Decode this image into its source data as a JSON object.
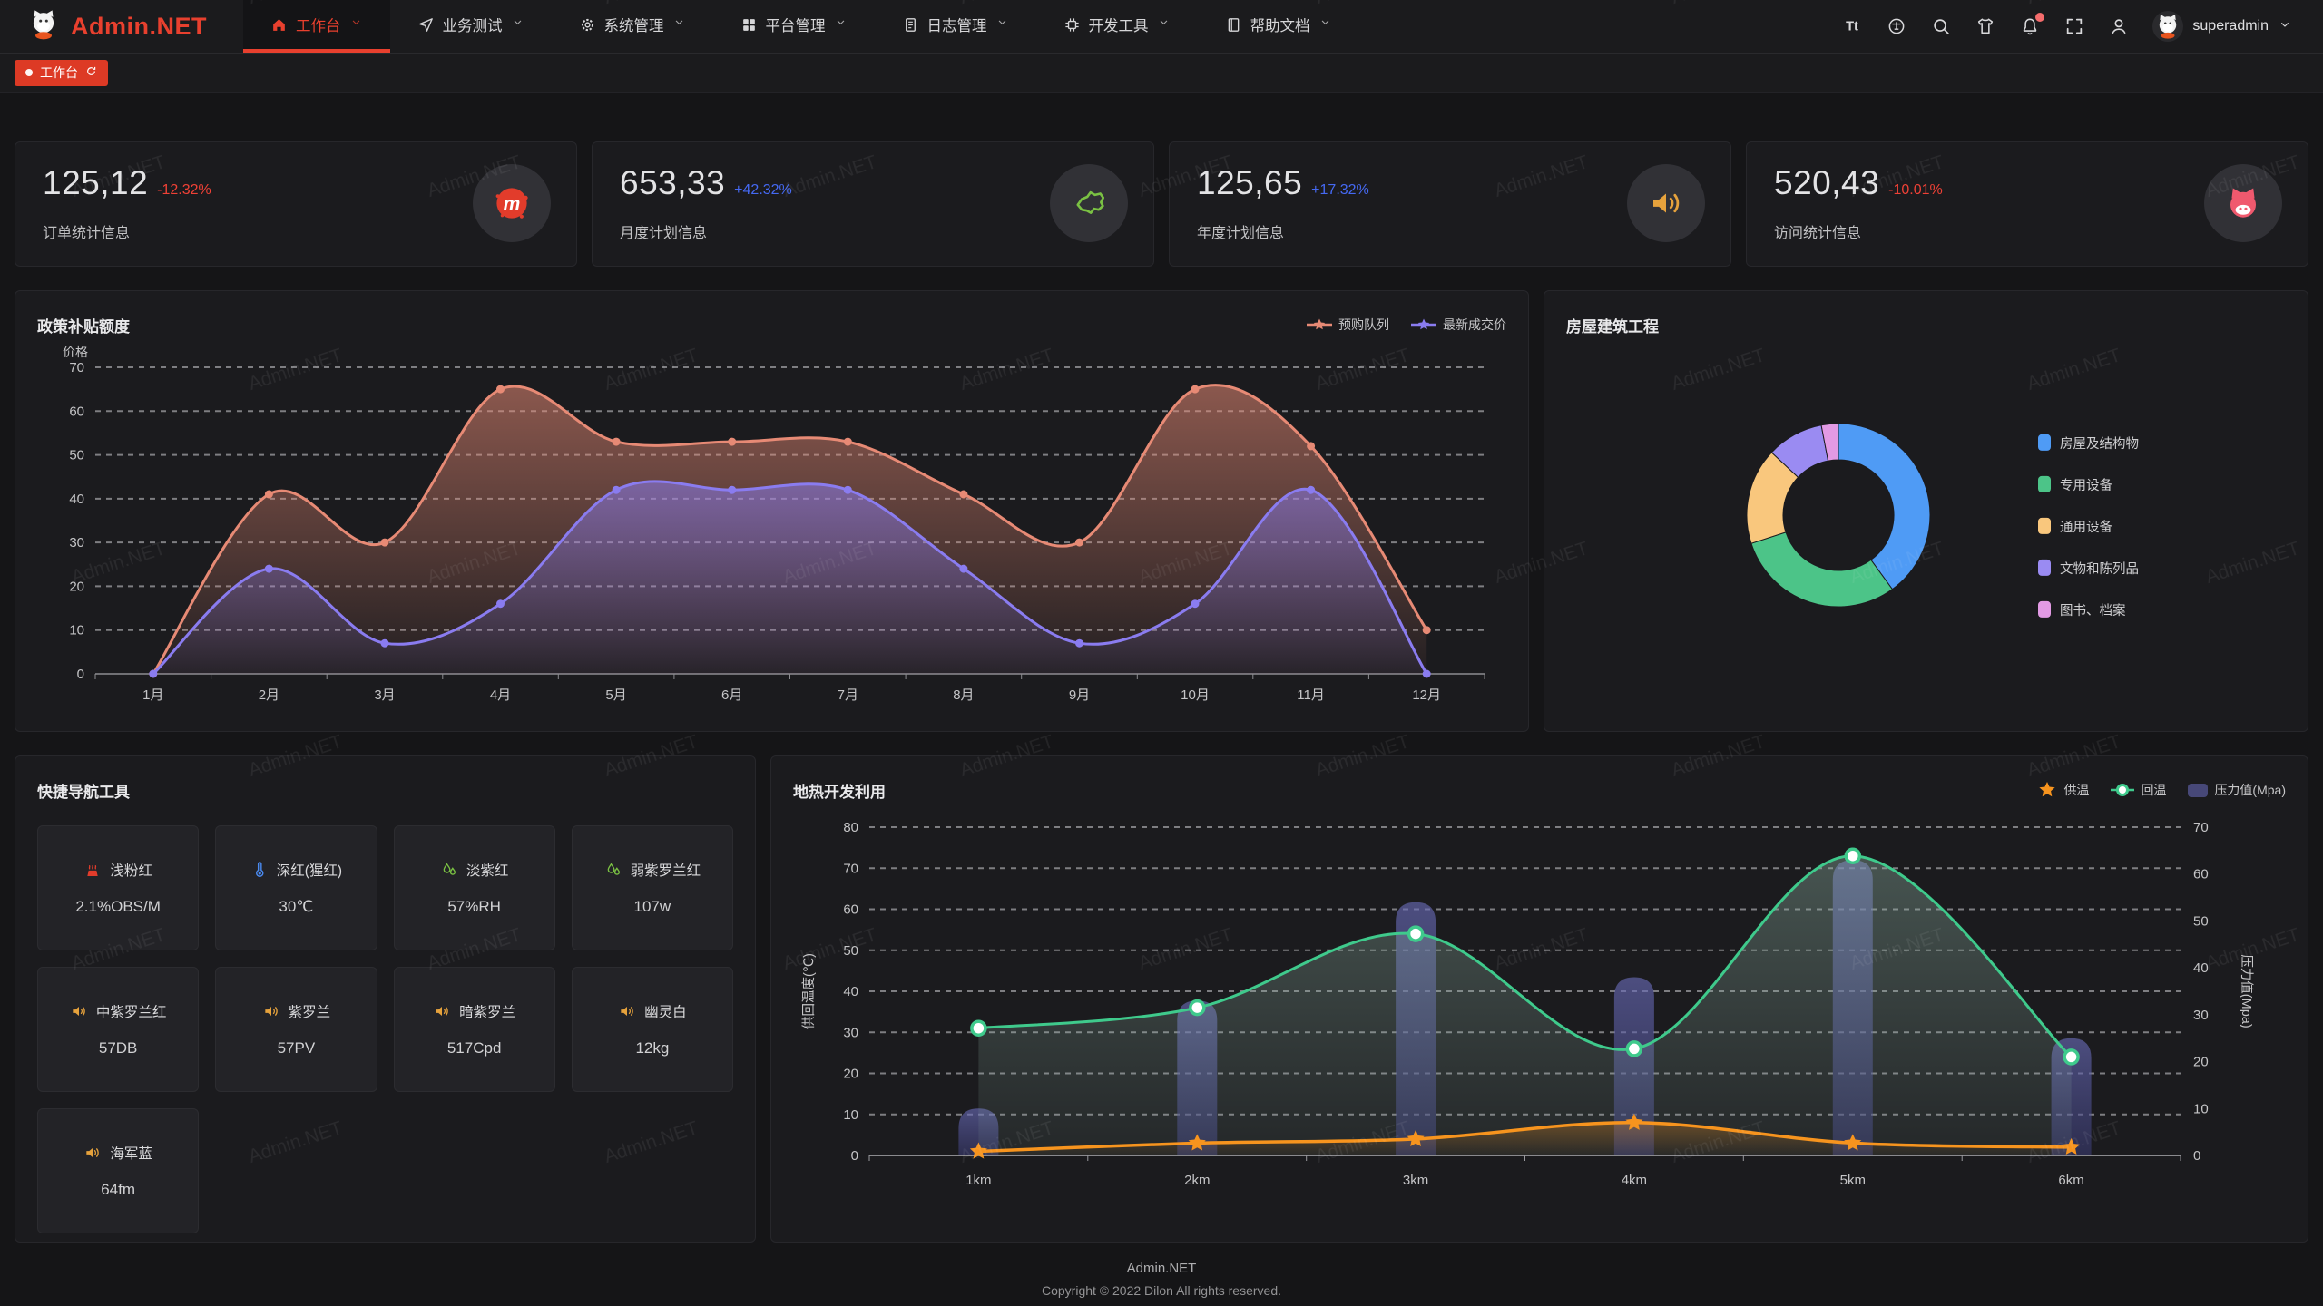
{
  "brand": {
    "name": "Admin.NET"
  },
  "topnav": {
    "items": [
      {
        "label": "工作台",
        "icon": "home",
        "active": true
      },
      {
        "label": "业务测试",
        "icon": "send",
        "active": false
      },
      {
        "label": "系统管理",
        "icon": "gear",
        "active": false
      },
      {
        "label": "平台管理",
        "icon": "grid",
        "active": false
      },
      {
        "label": "日志管理",
        "icon": "file",
        "active": false
      },
      {
        "label": "开发工具",
        "icon": "cpu",
        "active": false
      },
      {
        "label": "帮助文档",
        "icon": "book",
        "active": false
      }
    ],
    "tools": [
      {
        "name": "font-size",
        "icon": "tt",
        "badge": false
      },
      {
        "name": "language",
        "icon": "globe",
        "badge": false
      },
      {
        "name": "search",
        "icon": "search",
        "badge": false
      },
      {
        "name": "theme",
        "icon": "shirt",
        "badge": false
      },
      {
        "name": "notifications",
        "icon": "bell",
        "badge": true
      },
      {
        "name": "fullscreen",
        "icon": "fullscreen",
        "badge": false
      },
      {
        "name": "profile",
        "icon": "user",
        "badge": false
      }
    ],
    "user": {
      "name": "superadmin"
    }
  },
  "tabbar": {
    "active_tab": "工作台"
  },
  "stats": [
    {
      "value": "125,12",
      "trend": "-12.32%",
      "direction": "down",
      "label": "订单统计信息",
      "icon": "meetup",
      "accent": "#e23c2b"
    },
    {
      "value": "653,33",
      "trend": "+42.32%",
      "direction": "up",
      "label": "月度计划信息",
      "icon": "china-map",
      "accent": "#7ac143"
    },
    {
      "value": "125,65",
      "trend": "+17.32%",
      "direction": "up",
      "label": "年度计划信息",
      "icon": "speaker",
      "accent": "#e6a23c"
    },
    {
      "value": "520,43",
      "trend": "-10.01%",
      "direction": "down",
      "label": "访问统计信息",
      "icon": "cat",
      "accent": "#f0596e"
    }
  ],
  "chart_data": [
    {
      "type": "area",
      "title": "政策补贴额度",
      "ylabel": "价格",
      "categories": [
        "1月",
        "2月",
        "3月",
        "4月",
        "5月",
        "6月",
        "7月",
        "8月",
        "9月",
        "10月",
        "11月",
        "12月"
      ],
      "series": [
        {
          "name": "预购队列",
          "color": "#e78a75",
          "values": [
            0,
            41,
            30,
            65,
            53,
            53,
            53,
            41,
            30,
            65,
            52,
            10
          ]
        },
        {
          "name": "最新成交价",
          "color": "#8a7cf0",
          "values": [
            0,
            24,
            7,
            16,
            42,
            42,
            42,
            24,
            7,
            16,
            42,
            0
          ]
        }
      ],
      "ylim": [
        0,
        70
      ],
      "ytick": 10,
      "grid": "dashed",
      "legend_position": "top-right"
    },
    {
      "type": "pie",
      "title": "房屋建筑工程",
      "donut": true,
      "slices": [
        {
          "name": "房屋及结构物",
          "value": 40,
          "color": "#4f9bf5"
        },
        {
          "name": "专用设备",
          "value": 30,
          "color": "#4cc488"
        },
        {
          "name": "通用设备",
          "value": 17,
          "color": "#f9c77d"
        },
        {
          "name": "文物和陈列品",
          "value": 10,
          "color": "#9a8bf2"
        },
        {
          "name": "图书、档案",
          "value": 3,
          "color": "#e29ae4"
        }
      ],
      "legend_position": "right"
    },
    {
      "type": "mixed",
      "title": "地热开发利用",
      "categories": [
        "1km",
        "2km",
        "3km",
        "4km",
        "5km",
        "6km"
      ],
      "left_axis": {
        "label": "供回温度(℃)",
        "min": 0,
        "max": 80,
        "tick": 10
      },
      "right_axis": {
        "label": "压力值(Mpa)",
        "min": 0,
        "max": 70,
        "tick": 10
      },
      "series": [
        {
          "name": "供温",
          "type": "line",
          "axis": "left",
          "marker": "star",
          "color": "#f7941e",
          "values": [
            1,
            3,
            4,
            8,
            3,
            2
          ]
        },
        {
          "name": "回温",
          "type": "line",
          "axis": "left",
          "marker": "circle",
          "color": "#3fca8c",
          "values": [
            31,
            36,
            54,
            26,
            73,
            24
          ]
        },
        {
          "name": "压力值(Mpa)",
          "type": "bar",
          "axis": "right",
          "marker": "rect",
          "color": "#565896",
          "values": [
            10,
            33,
            54,
            38,
            63,
            25
          ]
        }
      ]
    }
  ],
  "quick_nav": {
    "title": "快捷导航工具",
    "cards": [
      {
        "label": "浅粉红",
        "value": "2.1%OBS/M",
        "icon": "heat",
        "color": "#e23c2b"
      },
      {
        "label": "深红(猩红)",
        "value": "30℃",
        "icon": "thermometer",
        "color": "#4a8af0"
      },
      {
        "label": "淡紫红",
        "value": "57%RH",
        "icon": "drops",
        "color": "#7ac143"
      },
      {
        "label": "弱紫罗兰红",
        "value": "107w",
        "icon": "drops",
        "color": "#7ac143"
      },
      {
        "label": "中紫罗兰红",
        "value": "57DB",
        "icon": "speaker",
        "color": "#e6a23c"
      },
      {
        "label": "紫罗兰",
        "value": "57PV",
        "icon": "speaker",
        "color": "#e6a23c"
      },
      {
        "label": "暗紫罗兰",
        "value": "517Cpd",
        "icon": "speaker",
        "color": "#e6a23c"
      },
      {
        "label": "幽灵白",
        "value": "12kg",
        "icon": "speaker",
        "color": "#e6a23c"
      },
      {
        "label": "海军蓝",
        "value": "64fm",
        "icon": "speaker",
        "color": "#e6a23c"
      }
    ]
  },
  "footer": {
    "line1": "Admin.NET",
    "line2": "Copyright © 2022 Dilon All rights reserved."
  },
  "watermark": {
    "text": "Admin.NET"
  }
}
